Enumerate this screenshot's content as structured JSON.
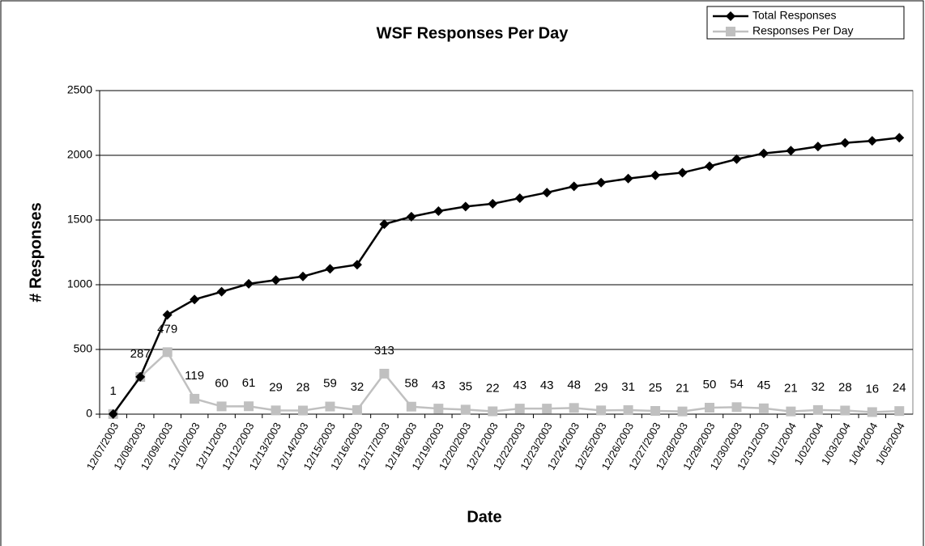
{
  "chart_data": {
    "type": "line",
    "title": "WSF Responses Per Day",
    "x_label": "Date",
    "y_label": "# Responses",
    "categories": [
      "12/07/2003",
      "12/08/2003",
      "12/09/2003",
      "12/10/2003",
      "12/11/2003",
      "12/12/2003",
      "12/13/2003",
      "12/14/2003",
      "12/15/2003",
      "12/16/2003",
      "12/17/2003",
      "12/18/2003",
      "12/19/2003",
      "12/20/2003",
      "12/21/2003",
      "12/22/2003",
      "12/23/2003",
      "12/24/2003",
      "12/25/2003",
      "12/26/2003",
      "12/27/2003",
      "12/28/2003",
      "12/29/2003",
      "12/30/2003",
      "12/31/2003",
      "1/01/2004",
      "1/02/2004",
      "1/03/2004",
      "1/04/2004",
      "1/05/2004"
    ],
    "series": [
      {
        "name": "Total Responses",
        "color": "#000000",
        "marker": "diamond",
        "values": [
          1,
          288,
          767,
          886,
          946,
          1007,
          1036,
          1064,
          1123,
          1155,
          1468,
          1526,
          1569,
          1604,
          1626,
          1669,
          1712,
          1760,
          1789,
          1820,
          1845,
          1866,
          1916,
          1970,
          2015,
          2036,
          2068,
          2096,
          2112,
          2136
        ]
      },
      {
        "name": "Responses Per Day",
        "color": "#c0c0c0",
        "marker": "square",
        "data_labels": true,
        "values": [
          1,
          287,
          479,
          119,
          60,
          61,
          29,
          28,
          59,
          32,
          313,
          58,
          43,
          35,
          22,
          43,
          43,
          48,
          29,
          31,
          25,
          21,
          50,
          54,
          45,
          21,
          32,
          28,
          16,
          24
        ]
      }
    ],
    "ylim": [
      0,
      2500
    ],
    "yticks": [
      0,
      500,
      1000,
      1500,
      2000,
      2500
    ],
    "grid": true,
    "legend": "top-right"
  }
}
